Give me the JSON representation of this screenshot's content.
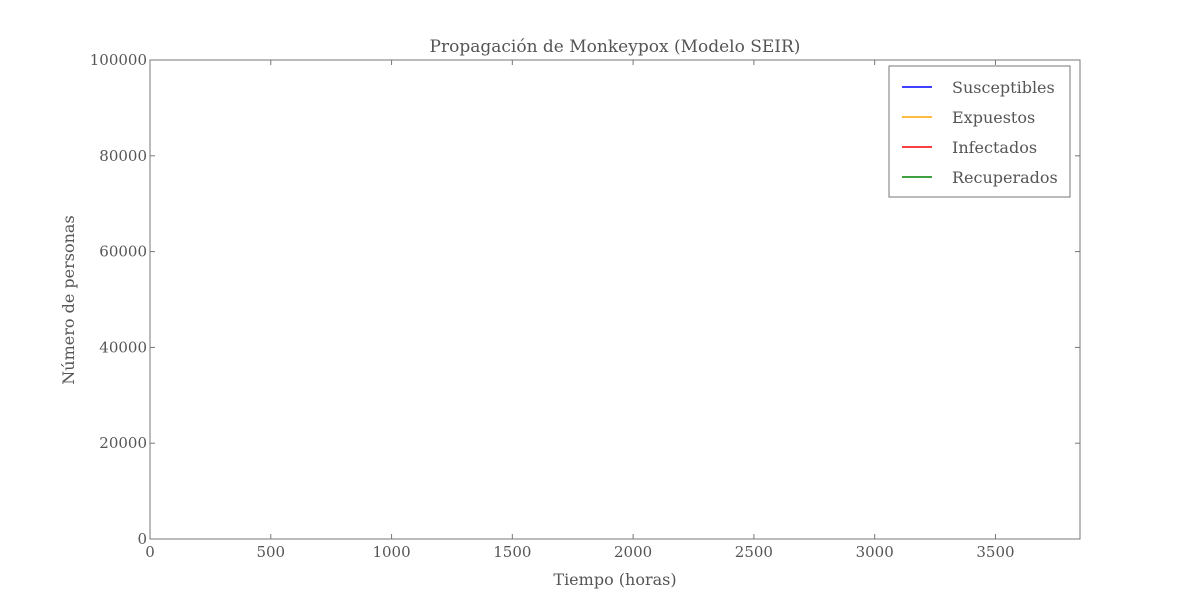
{
  "chart_data": {
    "type": "line",
    "title": "Propagación de Monkeypox (Modelo SEIR)",
    "xlabel": "Tiempo (horas)",
    "ylabel": "Número de personas",
    "xlim": [
      0,
      3850
    ],
    "ylim": [
      0,
      100000
    ],
    "x_ticks": [
      0,
      500,
      1000,
      1500,
      2000,
      2500,
      3000,
      3500
    ],
    "x_tick_labels": [
      "0",
      "500",
      "1000",
      "1500",
      "2000",
      "2500",
      "3000",
      "3500"
    ],
    "y_ticks": [
      0,
      20000,
      40000,
      60000,
      80000,
      100000
    ],
    "y_tick_labels": [
      "0",
      "20000",
      "40000",
      "60000",
      "80000",
      "100000"
    ],
    "grid": false,
    "legend_position": "top-right",
    "series": [
      {
        "name": "Susceptibles",
        "color": "#0000ff",
        "x": [],
        "values": []
      },
      {
        "name": "Expuestos",
        "color": "#ffa500",
        "x": [],
        "values": []
      },
      {
        "name": "Infectados",
        "color": "#ff0000",
        "x": [],
        "values": []
      },
      {
        "name": "Recuperados",
        "color": "#008000",
        "x": [],
        "values": []
      }
    ]
  }
}
